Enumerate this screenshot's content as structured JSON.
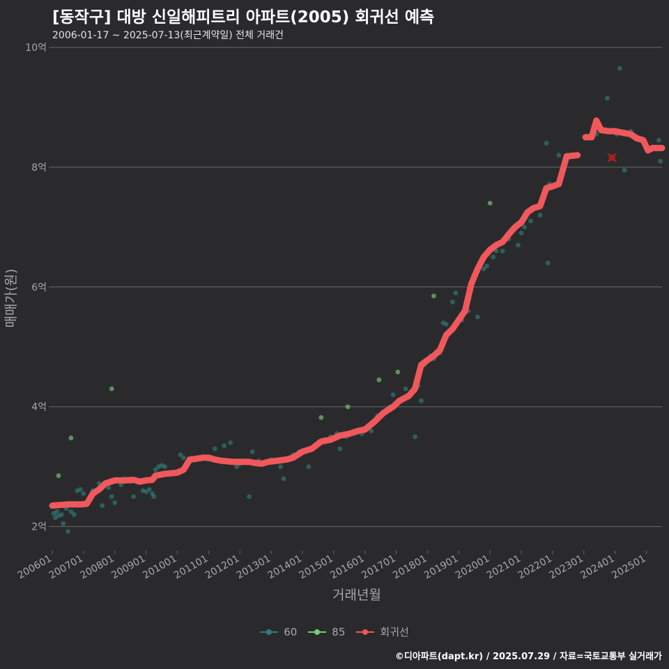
{
  "title": "[동작구] 대방 신일해피트리 아파트(2005) 회귀선 예측",
  "subtitle": "2006-01-17 ~ 2025-07-13(최근계약일) 전체 거래건",
  "footer": "©디아파트(dapt.kr) / 2025.07.29 / 자료=국토교통부 실거래가",
  "colors": {
    "background": "#2a2a2c",
    "grid": "#6a6a6a",
    "series_60": "#2f7d7a",
    "series_85": "#7dc97a",
    "regression": "#f0585c",
    "prediction_marker": "#b32020",
    "axis_text": "#a8a8a8"
  },
  "chart_data": {
    "type": "scatter",
    "xlabel": "거래년월",
    "ylabel": "매매가(원)",
    "xlim": [
      2006.0,
      2025.5
    ],
    "ylim": [
      1.6,
      10.0
    ],
    "y_ticks": [
      {
        "value": 2,
        "label": "2억"
      },
      {
        "value": 4,
        "label": "4억"
      },
      {
        "value": 6,
        "label": "6억"
      },
      {
        "value": 8,
        "label": "8억"
      },
      {
        "value": 10,
        "label": "10억"
      }
    ],
    "x_ticks": [
      "200601",
      "200701",
      "200801",
      "200901",
      "201001",
      "201101",
      "201201",
      "201301",
      "201401",
      "201501",
      "201601",
      "201701",
      "201801",
      "201901",
      "202001",
      "202101",
      "202201",
      "202301",
      "202401",
      "202501"
    ],
    "legend": [
      {
        "name": "60",
        "key": "series_60"
      },
      {
        "name": "85",
        "key": "series_85"
      },
      {
        "name": "회귀선",
        "key": "regression"
      }
    ],
    "series": [
      {
        "name": "60",
        "points": [
          [
            2006.05,
            2.22
          ],
          [
            2006.1,
            2.15
          ],
          [
            2006.15,
            2.25
          ],
          [
            2006.2,
            2.18
          ],
          [
            2006.3,
            2.2
          ],
          [
            2006.35,
            2.05
          ],
          [
            2006.45,
            2.3
          ],
          [
            2006.5,
            1.92
          ],
          [
            2006.6,
            2.25
          ],
          [
            2006.7,
            2.2
          ],
          [
            2006.8,
            2.6
          ],
          [
            2006.9,
            2.62
          ],
          [
            2007.0,
            2.55
          ],
          [
            2007.3,
            2.6
          ],
          [
            2007.5,
            2.72
          ],
          [
            2007.6,
            2.35
          ],
          [
            2007.8,
            2.65
          ],
          [
            2007.9,
            2.5
          ],
          [
            2008.0,
            2.4
          ],
          [
            2008.2,
            2.7
          ],
          [
            2008.3,
            2.8
          ],
          [
            2008.5,
            2.75
          ],
          [
            2008.6,
            2.5
          ],
          [
            2008.9,
            2.6
          ],
          [
            2009.0,
            2.58
          ],
          [
            2009.1,
            2.62
          ],
          [
            2009.2,
            2.55
          ],
          [
            2009.25,
            2.5
          ],
          [
            2009.3,
            2.95
          ],
          [
            2009.4,
            3.0
          ],
          [
            2009.5,
            3.02
          ],
          [
            2009.6,
            3.0
          ],
          [
            2009.8,
            2.9
          ],
          [
            2010.0,
            2.92
          ],
          [
            2010.1,
            3.2
          ],
          [
            2010.2,
            3.15
          ],
          [
            2010.4,
            3.1
          ],
          [
            2010.6,
            3.15
          ],
          [
            2011.0,
            3.12
          ],
          [
            2011.2,
            3.3
          ],
          [
            2011.5,
            3.35
          ],
          [
            2011.7,
            3.4
          ],
          [
            2011.9,
            3.0
          ],
          [
            2012.0,
            3.05
          ],
          [
            2012.3,
            2.5
          ],
          [
            2012.4,
            3.25
          ],
          [
            2012.6,
            3.1
          ],
          [
            2012.8,
            3.05
          ],
          [
            2013.0,
            3.12
          ],
          [
            2013.3,
            3.0
          ],
          [
            2013.4,
            2.8
          ],
          [
            2013.7,
            3.2
          ],
          [
            2013.9,
            3.25
          ],
          [
            2014.2,
            3.0
          ],
          [
            2014.5,
            3.4
          ],
          [
            2014.7,
            3.45
          ],
          [
            2014.9,
            3.5
          ],
          [
            2015.1,
            3.55
          ],
          [
            2015.2,
            3.3
          ],
          [
            2015.4,
            3.5
          ],
          [
            2015.7,
            3.6
          ],
          [
            2015.9,
            3.55
          ],
          [
            2016.2,
            3.6
          ],
          [
            2016.4,
            3.85
          ],
          [
            2016.6,
            3.9
          ],
          [
            2016.8,
            4.0
          ],
          [
            2016.9,
            4.2
          ],
          [
            2017.1,
            4.1
          ],
          [
            2017.3,
            4.3
          ],
          [
            2017.6,
            3.5
          ],
          [
            2017.7,
            4.35
          ],
          [
            2017.8,
            4.1
          ],
          [
            2017.9,
            4.7
          ],
          [
            2018.1,
            4.85
          ],
          [
            2018.2,
            4.8
          ],
          [
            2018.4,
            4.9
          ],
          [
            2018.5,
            5.4
          ],
          [
            2018.6,
            5.38
          ],
          [
            2018.8,
            5.75
          ],
          [
            2018.9,
            5.9
          ],
          [
            2019.1,
            5.45
          ],
          [
            2019.3,
            5.6
          ],
          [
            2019.6,
            5.5
          ],
          [
            2019.8,
            6.3
          ],
          [
            2019.9,
            6.35
          ],
          [
            2020.1,
            6.5
          ],
          [
            2020.2,
            6.6
          ],
          [
            2020.4,
            6.6
          ],
          [
            2020.6,
            6.8
          ],
          [
            2020.9,
            6.7
          ],
          [
            2021.0,
            6.9
          ],
          [
            2021.1,
            7.0
          ],
          [
            2021.3,
            7.1
          ],
          [
            2021.6,
            7.2
          ],
          [
            2021.8,
            8.4
          ],
          [
            2021.85,
            6.4
          ],
          [
            2021.9,
            7.72
          ],
          [
            2022.2,
            8.2
          ],
          [
            2022.45,
            8.2
          ],
          [
            2023.1,
            8.5
          ],
          [
            2023.3,
            8.6
          ],
          [
            2023.4,
            8.55
          ],
          [
            2023.6,
            8.6
          ],
          [
            2023.75,
            9.15
          ],
          [
            2023.9,
            8.6
          ],
          [
            2024.05,
            8.55
          ],
          [
            2024.15,
            9.65
          ],
          [
            2024.3,
            7.95
          ],
          [
            2024.5,
            8.6
          ],
          [
            2024.7,
            8.5
          ],
          [
            2024.9,
            8.45
          ],
          [
            2025.1,
            8.3
          ],
          [
            2025.4,
            8.45
          ],
          [
            2025.45,
            8.1
          ]
        ]
      },
      {
        "name": "85",
        "points": [
          [
            2006.2,
            2.85
          ],
          [
            2006.6,
            3.48
          ],
          [
            2007.9,
            4.3
          ],
          [
            2014.6,
            3.82
          ],
          [
            2015.45,
            4.0
          ],
          [
            2016.45,
            4.45
          ],
          [
            2017.05,
            4.58
          ],
          [
            2018.2,
            5.85
          ],
          [
            2020.0,
            7.4
          ]
        ]
      }
    ],
    "regression": [
      [
        2006.0,
        2.35
      ],
      [
        2006.5,
        2.37
      ],
      [
        2006.9,
        2.37
      ],
      [
        2007.1,
        2.38
      ],
      [
        2007.3,
        2.55
      ],
      [
        2007.5,
        2.62
      ],
      [
        2007.7,
        2.72
      ],
      [
        2008.0,
        2.77
      ],
      [
        2008.3,
        2.77
      ],
      [
        2008.6,
        2.78
      ],
      [
        2008.8,
        2.75
      ],
      [
        2009.0,
        2.77
      ],
      [
        2009.2,
        2.78
      ],
      [
        2009.3,
        2.85
      ],
      [
        2009.6,
        2.88
      ],
      [
        2010.0,
        2.9
      ],
      [
        2010.2,
        2.95
      ],
      [
        2010.4,
        3.12
      ],
      [
        2010.6,
        3.13
      ],
      [
        2010.8,
        3.15
      ],
      [
        2011.0,
        3.15
      ],
      [
        2011.2,
        3.12
      ],
      [
        2011.4,
        3.1
      ],
      [
        2011.8,
        3.08
      ],
      [
        2012.0,
        3.08
      ],
      [
        2012.3,
        3.08
      ],
      [
        2012.5,
        3.06
      ],
      [
        2012.7,
        3.05
      ],
      [
        2012.9,
        3.08
      ],
      [
        2013.2,
        3.1
      ],
      [
        2013.5,
        3.12
      ],
      [
        2013.7,
        3.15
      ],
      [
        2014.0,
        3.25
      ],
      [
        2014.3,
        3.3
      ],
      [
        2014.6,
        3.42
      ],
      [
        2014.9,
        3.45
      ],
      [
        2015.2,
        3.52
      ],
      [
        2015.5,
        3.55
      ],
      [
        2015.8,
        3.6
      ],
      [
        2016.0,
        3.62
      ],
      [
        2016.3,
        3.75
      ],
      [
        2016.6,
        3.9
      ],
      [
        2016.9,
        4.0
      ],
      [
        2017.1,
        4.1
      ],
      [
        2017.4,
        4.18
      ],
      [
        2017.6,
        4.3
      ],
      [
        2017.8,
        4.7
      ],
      [
        2018.0,
        4.78
      ],
      [
        2018.2,
        4.85
      ],
      [
        2018.4,
        4.95
      ],
      [
        2018.6,
        5.2
      ],
      [
        2018.8,
        5.3
      ],
      [
        2019.0,
        5.45
      ],
      [
        2019.2,
        5.6
      ],
      [
        2019.4,
        6.05
      ],
      [
        2019.6,
        6.3
      ],
      [
        2019.8,
        6.5
      ],
      [
        2020.0,
        6.62
      ],
      [
        2020.2,
        6.7
      ],
      [
        2020.4,
        6.75
      ],
      [
        2020.6,
        6.88
      ],
      [
        2020.8,
        7.0
      ],
      [
        2021.0,
        7.08
      ],
      [
        2021.2,
        7.25
      ],
      [
        2021.4,
        7.32
      ],
      [
        2021.6,
        7.35
      ],
      [
        2021.8,
        7.65
      ],
      [
        2022.0,
        7.68
      ],
      [
        2022.2,
        7.72
      ],
      [
        2022.45,
        8.18
      ],
      [
        2022.8,
        8.2
      ]
    ],
    "regression_recent": [
      [
        2023.05,
        8.5
      ],
      [
        2023.25,
        8.5
      ],
      [
        2023.4,
        8.78
      ],
      [
        2023.55,
        8.62
      ],
      [
        2023.8,
        8.6
      ],
      [
        2024.0,
        8.6
      ],
      [
        2024.2,
        8.58
      ],
      [
        2024.5,
        8.55
      ],
      [
        2024.7,
        8.48
      ],
      [
        2024.9,
        8.45
      ],
      [
        2025.05,
        8.28
      ],
      [
        2025.2,
        8.32
      ],
      [
        2025.5,
        8.32
      ]
    ],
    "prediction": [
      2023.9,
      8.16
    ]
  }
}
